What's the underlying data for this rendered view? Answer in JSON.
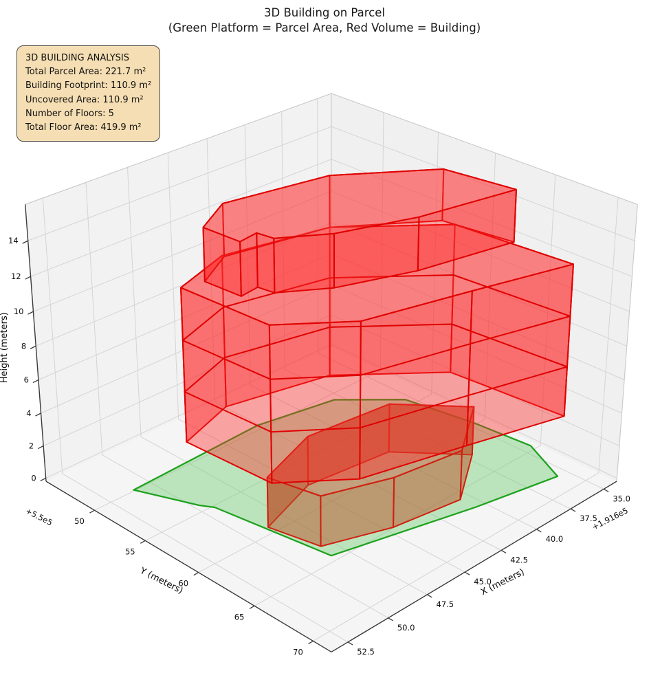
{
  "title": {
    "line1": "3D Building on Parcel",
    "line2": "(Green Platform = Parcel Area, Red Volume = Building)"
  },
  "annotation": {
    "heading": "3D BUILDING ANALYSIS",
    "lines": [
      "Total Parcel Area: 221.7 m²",
      "Building Footprint: 110.9 m²",
      "Uncovered Area: 110.9 m²",
      "Number of Floors: 5",
      "Total Floor Area: 419.9 m²"
    ],
    "bg_color": "#f5deb3",
    "border_color": "#4a4a4a"
  },
  "axes": {
    "x": {
      "label": "X (meters)",
      "offset_label": "+1.916e5",
      "tick_values": [
        52.5,
        50.0,
        47.5,
        45.0,
        42.5,
        40.0,
        37.5,
        35.0
      ],
      "tick_labels": [
        "52.5",
        "50.0",
        "47.5",
        "45.0",
        "42.5",
        "40.0",
        "37.5",
        "35.0"
      ],
      "lim": [
        34.0,
        53.5
      ]
    },
    "y": {
      "label": "Y (meters)",
      "offset_label": "+5.5e5",
      "tick_values": [
        50,
        55,
        60,
        65,
        70
      ],
      "tick_labels": [
        "50",
        "55",
        "60",
        "65",
        "70"
      ],
      "lim": [
        45.0,
        71.5
      ]
    },
    "z": {
      "label": "Height (meters)",
      "tick_values": [
        0,
        2,
        4,
        6,
        8,
        10,
        12,
        14
      ],
      "tick_labels": [
        "0",
        "2",
        "4",
        "6",
        "8",
        "10",
        "12",
        "14"
      ],
      "lim": [
        -0.2,
        16.0
      ]
    }
  },
  "chart_data": {
    "type": "3d-polygon-extrusion",
    "title": "3D Building on Parcel\n(Green Platform = Parcel Area, Red Volume = Building)",
    "stats": {
      "total_parcel_area_m2": 221.7,
      "building_footprint_m2": 110.9,
      "uncovered_area_m2": 110.9,
      "number_of_floors": 5,
      "total_floor_area_m2": 419.9
    },
    "parcel_polygon_xy": [
      [
        51.2,
        50.2
      ],
      [
        49.9,
        54.6
      ],
      [
        49.5,
        55.5
      ],
      [
        48.5,
        64.7
      ],
      [
        40.8,
        67.3
      ],
      [
        35.9,
        68.6
      ],
      [
        34.6,
        64.8
      ],
      [
        34.9,
        60.0
      ],
      [
        35.6,
        54.5
      ],
      [
        38.2,
        51.0
      ],
      [
        42.8,
        49.8
      ]
    ],
    "building": {
      "floor_height_m": 3,
      "num_floors": 5,
      "total_height_m": 15,
      "ground_block": {
        "z0": 0,
        "z1": 3,
        "footprint": [
          [
            48.9,
            59.6
          ],
          [
            48.3,
            63.5
          ],
          [
            44.8,
            65.2
          ],
          [
            40.8,
            66.0
          ],
          [
            37.3,
            62.8
          ],
          [
            40.0,
            58.6
          ],
          [
            45.0,
            57.8
          ]
        ]
      },
      "main_block": {
        "z0": 3,
        "z1": 12,
        "floor_ring_z": [
          6,
          9
        ],
        "footprint": [
          [
            49.4,
            52.8
          ],
          [
            49.1,
            60.3
          ],
          [
            46.0,
            63.8
          ],
          [
            40.3,
            65.8
          ],
          [
            34.9,
            67.8
          ],
          [
            35.5,
            58.5
          ],
          [
            40.0,
            53.0
          ],
          [
            45.8,
            51.2
          ]
        ]
      },
      "top_block": {
        "z0": 12,
        "z1": 15,
        "footprint": [
          [
            48.2,
            53.2
          ],
          [
            48.05,
            56.3
          ],
          [
            46.9,
            56.1
          ],
          [
            46.75,
            57.4
          ],
          [
            44.5,
            59.5
          ],
          [
            40.5,
            61.5
          ],
          [
            35.0,
            63.0
          ],
          [
            35.6,
            57.5
          ],
          [
            40.0,
            53.0
          ],
          [
            45.8,
            51.4
          ]
        ]
      }
    },
    "colors": {
      "parcel_fill": "rgba(110,205,110,0.42)",
      "parcel_edge": "#1fa21f",
      "building_side_fill": "rgba(255,38,38,0.40)",
      "building_top_fill": "rgba(255,80,80,0.38)",
      "building_edge": "#e00000",
      "ground_block_fill": "rgba(185,80,40,0.50)",
      "ground_block_edge": "#cf2010",
      "pane_left": "#f2f2f2",
      "pane_right": "#f0f0f0",
      "pane_floor": "#f5f5f5",
      "grid": "#d4d4d4",
      "box_edge_light": "#c8c8c8",
      "axis_line": "#3a3a3a"
    },
    "layout_hints": {
      "grid": true,
      "projection": "perspective",
      "elev_deg": 28,
      "azim_deg": 45
    }
  }
}
